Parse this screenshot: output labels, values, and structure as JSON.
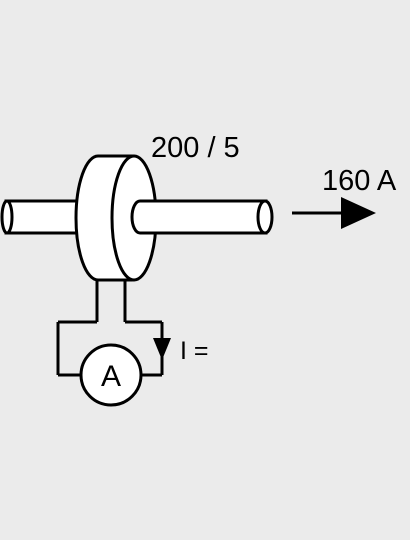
{
  "ratio_label": "200 / 5",
  "current_label": "160 A",
  "meter_label": "A",
  "secondary_label": "I =",
  "colors": {
    "background": "#ebebeb",
    "stroke": "#000000",
    "fill": "#ffffff"
  },
  "icons": [
    "current-arrow-icon",
    "ammeter-icon",
    "secondary-current-arrow-icon"
  ]
}
